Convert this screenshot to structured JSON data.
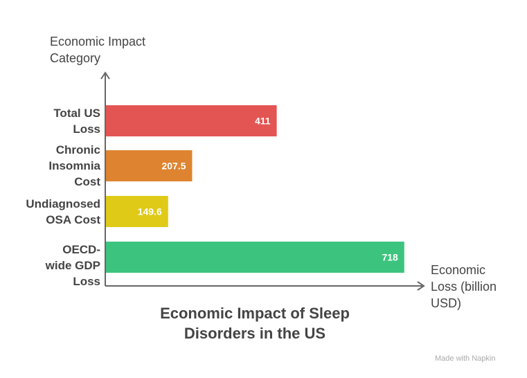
{
  "chart_data": {
    "type": "bar",
    "orientation": "horizontal",
    "title": "Economic Impact of Sleep Disorders in the US",
    "ylabel": "Economic Impact Category",
    "xlabel": "Economic Loss (billion USD)",
    "categories": [
      "Total US Loss",
      "Chronic Insomnia Cost",
      "Undiagnosed OSA Cost",
      "OECD-wide GDP Loss"
    ],
    "values": [
      411,
      207.5,
      149.6,
      718
    ],
    "value_labels": [
      "411",
      "207.5",
      "149.6",
      "718"
    ],
    "colors": [
      "#e35553",
      "#de8430",
      "#dfca17",
      "#3cc47f"
    ],
    "xlim": [
      0,
      765
    ],
    "grid": false
  },
  "watermark": "Made with Napkin"
}
